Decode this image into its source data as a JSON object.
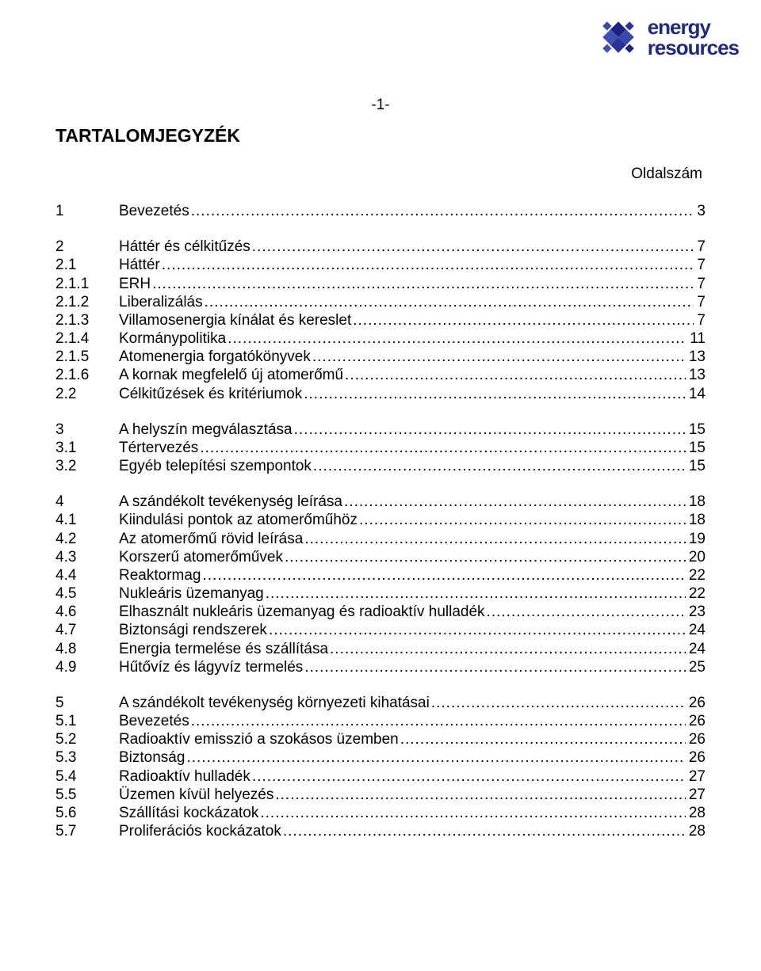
{
  "logo": {
    "line1": "energy",
    "line2": "resources",
    "diamond_colors": [
      "#1a237e",
      "#3949ab",
      "#3f51b5",
      "#283593"
    ]
  },
  "page_number_label": "-1-",
  "title": "TARTALOMJEGYZÉK",
  "column_header": "Oldalszám",
  "toc": [
    [
      {
        "num": "1",
        "label": "Bevezetés",
        "page": "3"
      }
    ],
    [
      {
        "num": "2",
        "label": "Háttér és célkitűzés",
        "page": "7"
      },
      {
        "num": "2.1",
        "label": "Háttér",
        "page": "7"
      },
      {
        "num": "2.1.1",
        "label": "ERH",
        "page": "7"
      },
      {
        "num": "2.1.2",
        "label": "Liberalizálás",
        "page": "7"
      },
      {
        "num": "2.1.3",
        "label": "Villamosenergia kínálat és kereslet",
        "page": "7"
      },
      {
        "num": "2.1.4",
        "label": "Kormánypolitika",
        "page": "11"
      },
      {
        "num": "2.1.5",
        "label": "Atomenergia forgatókönyvek",
        "page": "13"
      },
      {
        "num": "2.1.6",
        "label": "A kornak megfelelő új atomerőmű",
        "page": "13"
      },
      {
        "num": "2.2",
        "label": "Célkitűzések és kritériumok",
        "page": "14"
      }
    ],
    [
      {
        "num": "3",
        "label": "A helyszín megválasztása",
        "page": "15"
      },
      {
        "num": "3.1",
        "label": "Tértervezés",
        "page": "15"
      },
      {
        "num": "3.2",
        "label": "Egyéb telepítési szempontok",
        "page": "15"
      }
    ],
    [
      {
        "num": "4",
        "label": "A szándékolt tevékenység leírása",
        "page": "18"
      },
      {
        "num": "4.1",
        "label": "Kiindulási pontok az atomerőműhöz",
        "page": "18"
      },
      {
        "num": "4.2",
        "label": "Az atomerőmű rövid leírása",
        "page": "19"
      },
      {
        "num": "4.3",
        "label": "Korszerű atomerőművek",
        "page": "20"
      },
      {
        "num": "4.4",
        "label": "Reaktormag",
        "page": "22"
      },
      {
        "num": "4.5",
        "label": "Nukleáris üzemanyag",
        "page": "22"
      },
      {
        "num": "4.6",
        "label": "Elhasznált nukleáris üzemanyag és radioaktív hulladék",
        "page": "23"
      },
      {
        "num": "4.7",
        "label": "Biztonsági rendszerek",
        "page": "24"
      },
      {
        "num": "4.8",
        "label": "Energia termelése és szállítása",
        "page": "24"
      },
      {
        "num": "4.9",
        "label": "Hűtővíz és lágyvíz termelés",
        "page": "25"
      }
    ],
    [
      {
        "num": "5",
        "label": "A szándékolt tevékenység környezeti kihatásai",
        "page": "26"
      },
      {
        "num": "5.1",
        "label": "Bevezetés",
        "page": "26"
      },
      {
        "num": "5.2",
        "label": "Radioaktív emisszió a szokásos üzemben",
        "page": "26"
      },
      {
        "num": "5.3",
        "label": "Biztonság",
        "page": "26"
      },
      {
        "num": "5.4",
        "label": "Radioaktív hulladék",
        "page": "27"
      },
      {
        "num": "5.5",
        "label": "Üzemen kívül helyezés",
        "page": "27"
      },
      {
        "num": "5.6",
        "label": "Szállítási kockázatok",
        "page": "28"
      },
      {
        "num": "5.7",
        "label": "Proliferációs kockázatok",
        "page": "28"
      }
    ]
  ]
}
